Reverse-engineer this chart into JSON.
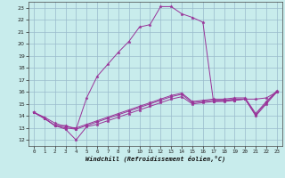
{
  "xlabel": "Windchill (Refroidissement éolien,°C)",
  "bg_color": "#c8ecec",
  "line_color": "#993399",
  "grid_color": "#99bbcc",
  "xlim": [
    -0.5,
    23.5
  ],
  "ylim": [
    11.5,
    23.5
  ],
  "xticks": [
    0,
    1,
    2,
    3,
    4,
    5,
    6,
    7,
    8,
    9,
    10,
    11,
    12,
    13,
    14,
    15,
    16,
    17,
    18,
    19,
    20,
    21,
    22,
    23
  ],
  "yticks": [
    12,
    13,
    14,
    15,
    16,
    17,
    18,
    19,
    20,
    21,
    22,
    23
  ],
  "series": [
    [
      14.3,
      13.8,
      13.2,
      12.9,
      12.0,
      13.1,
      13.3,
      13.6,
      13.9,
      14.2,
      14.5,
      14.8,
      15.1,
      15.4,
      15.6,
      15.0,
      15.1,
      15.2,
      15.3,
      15.3,
      15.4,
      14.0,
      15.0,
      16.0
    ],
    [
      14.3,
      13.8,
      13.2,
      13.2,
      12.9,
      15.5,
      17.3,
      18.3,
      19.3,
      20.2,
      21.4,
      21.6,
      23.1,
      23.1,
      22.5,
      22.2,
      21.8,
      15.2,
      15.2,
      15.3,
      15.4,
      15.4,
      15.5,
      16.0
    ],
    [
      14.3,
      13.8,
      13.2,
      13.0,
      12.9,
      13.2,
      13.5,
      13.8,
      14.1,
      14.4,
      14.7,
      15.0,
      15.3,
      15.6,
      15.8,
      15.1,
      15.2,
      15.3,
      15.3,
      15.4,
      15.4,
      14.1,
      15.1,
      16.0
    ],
    [
      14.3,
      13.9,
      13.4,
      13.1,
      13.0,
      13.3,
      13.6,
      13.9,
      14.2,
      14.5,
      14.8,
      15.1,
      15.4,
      15.7,
      15.9,
      15.2,
      15.3,
      15.4,
      15.4,
      15.5,
      15.5,
      14.2,
      15.2,
      16.1
    ]
  ]
}
